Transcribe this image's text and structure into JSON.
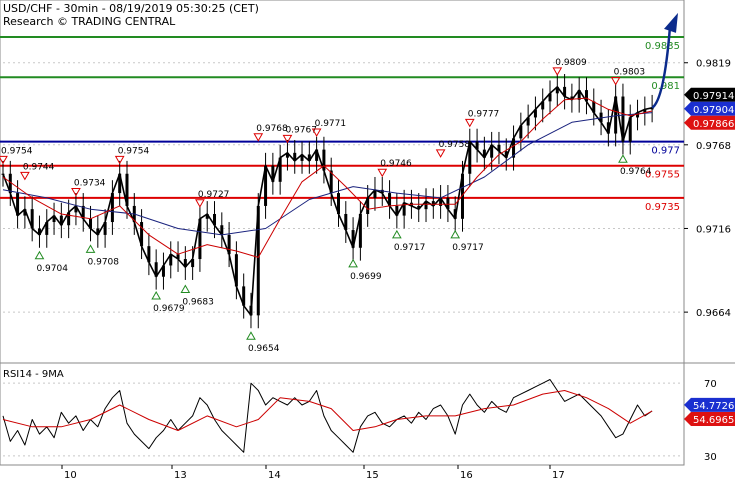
{
  "header": {
    "title": "USD/CHF - 30min - 08/19/2019 05:30:25 (CET)",
    "source": "Research © TRADING CENTRAL"
  },
  "colors": {
    "price": "#000000",
    "ma_fast": "#cc0000",
    "ma_slow": "#1a237e",
    "support": "#000099",
    "resistance": "#dd0000",
    "target": "#228b22",
    "arrow": "#0b2b8c",
    "tag_current": "#000000",
    "tag_blue": "#1a2fd0",
    "tag_red": "#dd1111",
    "rsi": "#000000",
    "rsi_ma": "#cc0000"
  },
  "chart_data": [
    {
      "type": "line",
      "title": "",
      "ylim": [
        0.9633,
        0.9858
      ],
      "x_ticks": [
        "10",
        "13",
        "14",
        "15",
        "16",
        "17"
      ],
      "y_ticks": [
        "0.9819",
        "0.9768",
        "0.9716",
        "0.9664"
      ],
      "series": [],
      "levels": [
        {
          "label": "0.9835",
          "value": 0.9835,
          "kind": "target"
        },
        {
          "label": "0.981",
          "value": 0.981,
          "kind": "target"
        },
        {
          "label": "0.977",
          "value": 0.977,
          "kind": "support"
        },
        {
          "label": "0.9755",
          "value": 0.9755,
          "kind": "resistance"
        },
        {
          "label": "0.9735",
          "value": 0.9735,
          "kind": "resistance"
        }
      ],
      "price_tags": [
        {
          "label": "0.97914",
          "value": 0.97914,
          "kind": "current"
        },
        {
          "label": "0.97904",
          "value": 0.97904,
          "kind": "blue"
        },
        {
          "label": "0.97866",
          "value": 0.97866,
          "kind": "red"
        }
      ],
      "annotations": [
        {
          "label": "0.9754",
          "x": 0,
          "value": 0.9754,
          "dir": "down"
        },
        {
          "label": "0.9744",
          "x": 3,
          "value": 0.9744,
          "dir": "down"
        },
        {
          "label": "0.9734",
          "x": 10,
          "value": 0.9734,
          "dir": "down"
        },
        {
          "label": "0.9754",
          "x": 16,
          "value": 0.9754,
          "dir": "down"
        },
        {
          "label": "0.9727",
          "x": 27,
          "value": 0.9727,
          "dir": "down"
        },
        {
          "label": "0.9768",
          "x": 35,
          "value": 0.9768,
          "dir": "down"
        },
        {
          "label": "0.9767",
          "x": 39,
          "value": 0.9767,
          "dir": "down"
        },
        {
          "label": "0.9771",
          "x": 43,
          "value": 0.9771,
          "dir": "down"
        },
        {
          "label": "0.9746",
          "x": 52,
          "value": 0.9746,
          "dir": "down"
        },
        {
          "label": "0.9758",
          "x": 60,
          "value": 0.9758,
          "dir": "down"
        },
        {
          "label": "0.9777",
          "x": 64,
          "value": 0.9777,
          "dir": "down"
        },
        {
          "label": "0.9809",
          "x": 76,
          "value": 0.9809,
          "dir": "down"
        },
        {
          "label": "0.9803",
          "x": 84,
          "value": 0.9803,
          "dir": "down"
        },
        {
          "label": "0.9704",
          "x": 5,
          "value": 0.9704,
          "dir": "up"
        },
        {
          "label": "0.9708",
          "x": 12,
          "value": 0.9708,
          "dir": "up"
        },
        {
          "label": "0.9679",
          "x": 21,
          "value": 0.9679,
          "dir": "up"
        },
        {
          "label": "0.9683",
          "x": 25,
          "value": 0.9683,
          "dir": "up"
        },
        {
          "label": "0.9654",
          "x": 34,
          "value": 0.9654,
          "dir": "up"
        },
        {
          "label": "0.9699",
          "x": 48,
          "value": 0.9699,
          "dir": "up"
        },
        {
          "label": "0.9717",
          "x": 54,
          "value": 0.9717,
          "dir": "up"
        },
        {
          "label": "0.9717",
          "x": 62,
          "value": 0.9717,
          "dir": "up"
        },
        {
          "label": "0.9764",
          "x": 85,
          "value": 0.9764,
          "dir": "up"
        }
      ],
      "price_path": [
        [
          0,
          0.975
        ],
        [
          1,
          0.9738
        ],
        [
          2,
          0.9724
        ],
        [
          3,
          0.9728
        ],
        [
          4,
          0.9716
        ],
        [
          5,
          0.9712
        ],
        [
          6,
          0.972
        ],
        [
          7,
          0.9724
        ],
        [
          8,
          0.9718
        ],
        [
          9,
          0.9726
        ],
        [
          10,
          0.973
        ],
        [
          11,
          0.9722
        ],
        [
          12,
          0.9716
        ],
        [
          13,
          0.9712
        ],
        [
          14,
          0.972
        ],
        [
          15,
          0.9738
        ],
        [
          16,
          0.975
        ],
        [
          17,
          0.973
        ],
        [
          18,
          0.972
        ],
        [
          19,
          0.9705
        ],
        [
          20,
          0.9695
        ],
        [
          21,
          0.9686
        ],
        [
          22,
          0.9693
        ],
        [
          23,
          0.97
        ],
        [
          24,
          0.9697
        ],
        [
          25,
          0.9692
        ],
        [
          26,
          0.9697
        ],
        [
          27,
          0.9722
        ],
        [
          28,
          0.9725
        ],
        [
          29,
          0.9718
        ],
        [
          30,
          0.9712
        ],
        [
          31,
          0.97
        ],
        [
          32,
          0.968
        ],
        [
          33,
          0.9668
        ],
        [
          34,
          0.9662
        ],
        [
          35,
          0.973
        ],
        [
          36,
          0.9755
        ],
        [
          37,
          0.9745
        ],
        [
          38,
          0.976
        ],
        [
          39,
          0.9763
        ],
        [
          40,
          0.9758
        ],
        [
          41,
          0.9762
        ],
        [
          42,
          0.9758
        ],
        [
          43,
          0.9765
        ],
        [
          44,
          0.9752
        ],
        [
          45,
          0.9738
        ],
        [
          46,
          0.9725
        ],
        [
          47,
          0.9715
        ],
        [
          48,
          0.9704
        ],
        [
          49,
          0.9725
        ],
        [
          50,
          0.9735
        ],
        [
          51,
          0.974
        ],
        [
          52,
          0.9738
        ],
        [
          53,
          0.973
        ],
        [
          54,
          0.9724
        ],
        [
          55,
          0.9732
        ],
        [
          56,
          0.973
        ],
        [
          57,
          0.9728
        ],
        [
          58,
          0.9733
        ],
        [
          59,
          0.973
        ],
        [
          60,
          0.9735
        ],
        [
          61,
          0.9728
        ],
        [
          62,
          0.9722
        ],
        [
          63,
          0.975
        ],
        [
          64,
          0.977
        ],
        [
          65,
          0.9765
        ],
        [
          66,
          0.976
        ],
        [
          67,
          0.9768
        ],
        [
          68,
          0.9764
        ],
        [
          69,
          0.976
        ],
        [
          70,
          0.9772
        ],
        [
          71,
          0.978
        ],
        [
          72,
          0.9785
        ],
        [
          73,
          0.979
        ],
        [
          74,
          0.9795
        ],
        [
          75,
          0.98
        ],
        [
          76,
          0.9804
        ],
        [
          77,
          0.9798
        ],
        [
          78,
          0.9796
        ],
        [
          79,
          0.9802
        ],
        [
          80,
          0.9795
        ],
        [
          81,
          0.9788
        ],
        [
          82,
          0.9782
        ],
        [
          83,
          0.9775
        ],
        [
          84,
          0.9798
        ],
        [
          85,
          0.977
        ],
        [
          86,
          0.9785
        ],
        [
          87,
          0.9788
        ],
        [
          88,
          0.979
        ],
        [
          89,
          0.9791
        ]
      ],
      "ma_fast": [
        [
          0,
          0.9748
        ],
        [
          4,
          0.9735
        ],
        [
          8,
          0.9725
        ],
        [
          12,
          0.9722
        ],
        [
          16,
          0.973
        ],
        [
          20,
          0.9712
        ],
        [
          24,
          0.97
        ],
        [
          28,
          0.9706
        ],
        [
          32,
          0.9702
        ],
        [
          35,
          0.9698
        ],
        [
          38,
          0.9722
        ],
        [
          41,
          0.9745
        ],
        [
          44,
          0.9755
        ],
        [
          47,
          0.9742
        ],
        [
          50,
          0.9728
        ],
        [
          53,
          0.973
        ],
        [
          56,
          0.9731
        ],
        [
          59,
          0.9731
        ],
        [
          62,
          0.9731
        ],
        [
          65,
          0.9748
        ],
        [
          68,
          0.9762
        ],
        [
          71,
          0.977
        ],
        [
          74,
          0.9784
        ],
        [
          77,
          0.9796
        ],
        [
          80,
          0.9797
        ],
        [
          83,
          0.979
        ],
        [
          86,
          0.9786
        ],
        [
          89,
          0.9789
        ]
      ],
      "ma_slow": [
        [
          0,
          0.974
        ],
        [
          6,
          0.9735
        ],
        [
          12,
          0.9728
        ],
        [
          18,
          0.9725
        ],
        [
          24,
          0.9716
        ],
        [
          30,
          0.9712
        ],
        [
          36,
          0.9716
        ],
        [
          42,
          0.9734
        ],
        [
          48,
          0.9742
        ],
        [
          54,
          0.9738
        ],
        [
          60,
          0.9735
        ],
        [
          66,
          0.9748
        ],
        [
          72,
          0.9768
        ],
        [
          78,
          0.9782
        ],
        [
          84,
          0.9786
        ],
        [
          89,
          0.9788
        ]
      ],
      "projection": [
        [
          89,
          0.9791
        ],
        [
          92,
          0.985
        ]
      ]
    },
    {
      "type": "line",
      "title": "RSI14 - 9MA",
      "ylim": [
        25,
        80
      ],
      "y_ticks": [
        "70",
        "30"
      ],
      "series": [],
      "tags": [
        {
          "label": "54.7726",
          "value": 54.7726,
          "kind": "blue"
        },
        {
          "label": "54.6965",
          "value": 54.6965,
          "kind": "red"
        }
      ],
      "rsi": [
        [
          0,
          52
        ],
        [
          1,
          38
        ],
        [
          2,
          44
        ],
        [
          3,
          36
        ],
        [
          4,
          50
        ],
        [
          5,
          42
        ],
        [
          6,
          46
        ],
        [
          7,
          40
        ],
        [
          8,
          54
        ],
        [
          9,
          48
        ],
        [
          10,
          52
        ],
        [
          11,
          44
        ],
        [
          12,
          50
        ],
        [
          13,
          46
        ],
        [
          14,
          56
        ],
        [
          15,
          62
        ],
        [
          16,
          66
        ],
        [
          17,
          48
        ],
        [
          18,
          42
        ],
        [
          19,
          38
        ],
        [
          20,
          34
        ],
        [
          21,
          40
        ],
        [
          22,
          44
        ],
        [
          23,
          50
        ],
        [
          24,
          44
        ],
        [
          25,
          48
        ],
        [
          26,
          52
        ],
        [
          27,
          62
        ],
        [
          28,
          58
        ],
        [
          29,
          50
        ],
        [
          30,
          44
        ],
        [
          31,
          40
        ],
        [
          32,
          36
        ],
        [
          33,
          32
        ],
        [
          34,
          70
        ],
        [
          35,
          66
        ],
        [
          36,
          58
        ],
        [
          37,
          62
        ],
        [
          38,
          60
        ],
        [
          39,
          58
        ],
        [
          40,
          62
        ],
        [
          41,
          58
        ],
        [
          42,
          60
        ],
        [
          43,
          66
        ],
        [
          44,
          52
        ],
        [
          45,
          44
        ],
        [
          46,
          40
        ],
        [
          47,
          36
        ],
        [
          48,
          32
        ],
        [
          49,
          46
        ],
        [
          50,
          52
        ],
        [
          51,
          54
        ],
        [
          52,
          48
        ],
        [
          53,
          46
        ],
        [
          54,
          50
        ],
        [
          55,
          52
        ],
        [
          56,
          48
        ],
        [
          57,
          54
        ],
        [
          58,
          50
        ],
        [
          59,
          56
        ],
        [
          60,
          58
        ],
        [
          61,
          52
        ],
        [
          62,
          42
        ],
        [
          63,
          58
        ],
        [
          64,
          64
        ],
        [
          65,
          58
        ],
        [
          66,
          54
        ],
        [
          67,
          60
        ],
        [
          68,
          56
        ],
        [
          69,
          54
        ],
        [
          70,
          62
        ],
        [
          71,
          64
        ],
        [
          72,
          66
        ],
        [
          73,
          68
        ],
        [
          74,
          70
        ],
        [
          75,
          72
        ],
        [
          76,
          66
        ],
        [
          77,
          60
        ],
        [
          78,
          62
        ],
        [
          79,
          64
        ],
        [
          80,
          60
        ],
        [
          81,
          56
        ],
        [
          82,
          52
        ],
        [
          83,
          46
        ],
        [
          84,
          40
        ],
        [
          85,
          42
        ],
        [
          86,
          50
        ],
        [
          87,
          58
        ],
        [
          88,
          52
        ],
        [
          89,
          54.77
        ]
      ],
      "rsi_ma": [
        [
          0,
          50
        ],
        [
          4,
          46
        ],
        [
          8,
          46
        ],
        [
          12,
          50
        ],
        [
          16,
          58
        ],
        [
          20,
          50
        ],
        [
          24,
          44
        ],
        [
          28,
          52
        ],
        [
          32,
          46
        ],
        [
          35,
          50
        ],
        [
          38,
          62
        ],
        [
          42,
          60
        ],
        [
          45,
          56
        ],
        [
          48,
          44
        ],
        [
          51,
          46
        ],
        [
          54,
          50
        ],
        [
          58,
          52
        ],
        [
          62,
          52
        ],
        [
          66,
          56
        ],
        [
          70,
          58
        ],
        [
          74,
          64
        ],
        [
          77,
          66
        ],
        [
          80,
          62
        ],
        [
          83,
          56
        ],
        [
          86,
          48
        ],
        [
          89,
          54.7
        ]
      ]
    }
  ]
}
